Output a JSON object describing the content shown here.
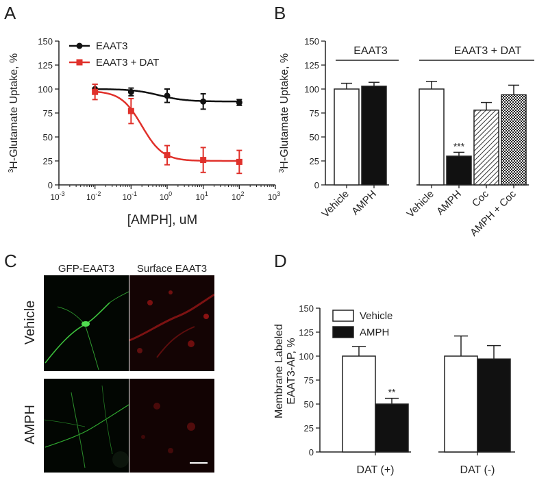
{
  "panels": {
    "a": {
      "label": "A",
      "chart_data": {
        "type": "scatter",
        "xscale": "log",
        "xlabel": "[AMPH], uM",
        "ylabel_sup": "3",
        "ylabel_main": "H-Glutamate Uptake, %",
        "xlim": [
          0.001,
          1000
        ],
        "ylim": [
          0,
          150
        ],
        "xticks": [
          {
            "v": 0.001,
            "base": "10",
            "exp": "-3"
          },
          {
            "v": 0.01,
            "base": "10",
            "exp": "-2"
          },
          {
            "v": 0.1,
            "base": "10",
            "exp": "-1"
          },
          {
            "v": 1,
            "base": "10",
            "exp": "0"
          },
          {
            "v": 10,
            "base": "10",
            "exp": "1"
          },
          {
            "v": 100,
            "base": "10",
            "exp": "2"
          },
          {
            "v": 1000,
            "base": "10",
            "exp": "3"
          }
        ],
        "yticks": [
          0,
          25,
          50,
          75,
          100,
          125,
          150
        ],
        "series": [
          {
            "name": "EAAT3",
            "color": "#111111",
            "marker": "circle",
            "x": [
              0.01,
              0.1,
              1,
              10,
              100
            ],
            "y": [
              100,
              97,
              93,
              87,
              86
            ],
            "err": [
              5,
              4,
              7,
              8,
              3
            ],
            "fit": {
              "top": 100,
              "bottom": 87,
              "ec50": 0.6,
              "hill": 1.2
            }
          },
          {
            "name": "EAAT3 + DAT",
            "color": "#e0312b",
            "marker": "square",
            "x": [
              0.01,
              0.1,
              1,
              10,
              100
            ],
            "y": [
              97,
              77,
              31,
              26,
              24
            ],
            "err": [
              8,
              13,
              10,
              13,
              12
            ],
            "fit": {
              "top": 98,
              "bottom": 25,
              "ec50": 0.2,
              "hill": 1.5
            }
          }
        ]
      }
    },
    "b": {
      "label": "B",
      "chart_data": {
        "type": "bar",
        "ylabel_sup": "3",
        "ylabel_main": "H-Glutamate Uptake, %",
        "ylim": [
          0,
          150
        ],
        "yticks": [
          0,
          25,
          50,
          75,
          100,
          125,
          150
        ],
        "group_labels": [
          "EAAT3",
          "EAAT3 + DAT"
        ],
        "categories": [
          "Vehicle",
          "AMPH",
          "Vehicle",
          "AMPH",
          "Coc",
          "AMPH + Coc"
        ],
        "values": [
          100,
          103,
          100,
          30,
          78,
          94
        ],
        "errors": [
          6,
          4,
          8,
          4,
          8,
          10
        ],
        "fills": [
          "white",
          "black",
          "white",
          "black",
          "hatch",
          "dots"
        ],
        "annotations": [
          {
            "index": 3,
            "text": "***"
          }
        ]
      }
    },
    "c": {
      "label": "C",
      "col_labels": [
        "GFP-EAAT3",
        "Surface EAAT3"
      ],
      "row_labels": [
        "Vehicle",
        "AMPH"
      ]
    },
    "d": {
      "label": "D",
      "chart_data": {
        "type": "bar",
        "ylabel_line1": "Membrane Labeled",
        "ylabel_line2": "EAAT3-AP, %",
        "ylim": [
          0,
          150
        ],
        "yticks": [
          0,
          25,
          50,
          75,
          100,
          125,
          150
        ],
        "categories": [
          "DAT (+)",
          "DAT (-)"
        ],
        "series": [
          {
            "name": "Vehicle",
            "fill": "white",
            "values": [
              100,
              100
            ],
            "errors": [
              10,
              21
            ]
          },
          {
            "name": "AMPH",
            "fill": "black",
            "values": [
              50,
              97
            ],
            "errors": [
              6,
              14
            ]
          }
        ],
        "annotations": [
          {
            "category": 0,
            "series": 1,
            "text": "**"
          }
        ]
      }
    }
  }
}
